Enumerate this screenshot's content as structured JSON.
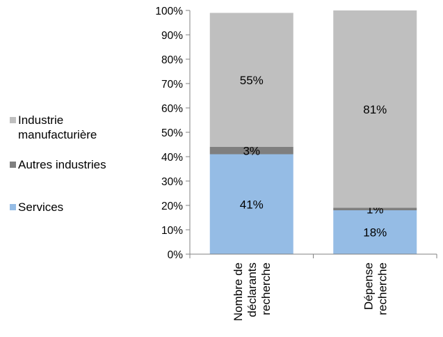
{
  "chart_data": {
    "type": "bar",
    "stacked": true,
    "percent_axis": true,
    "categories": [
      "Nombre de déclarants recherche",
      "Dépense recherche"
    ],
    "category_lines": [
      [
        "Nombre de",
        "déclarants",
        "recherche"
      ],
      [
        "Dépense",
        "recherche"
      ]
    ],
    "series": [
      {
        "name": "Services",
        "values": [
          41,
          18
        ],
        "labels": [
          "41%",
          "18%"
        ],
        "color": "#95bce5"
      },
      {
        "name": "Autres industries",
        "values": [
          3,
          1
        ],
        "labels": [
          "3%",
          "1%"
        ],
        "color": "#7f7f7f"
      },
      {
        "name": "Industrie manufacturière",
        "values": [
          55,
          81
        ],
        "labels": [
          "55%",
          "81%"
        ],
        "color": "#bfbfbf"
      }
    ],
    "ylim": [
      0,
      100
    ],
    "yticks": [
      "0%",
      "10%",
      "20%",
      "30%",
      "40%",
      "50%",
      "60%",
      "70%",
      "80%",
      "90%",
      "100%"
    ],
    "grid": false,
    "legend_position": "left",
    "legend_order": [
      "Industrie manufacturière",
      "Autres industries",
      "Services"
    ]
  }
}
